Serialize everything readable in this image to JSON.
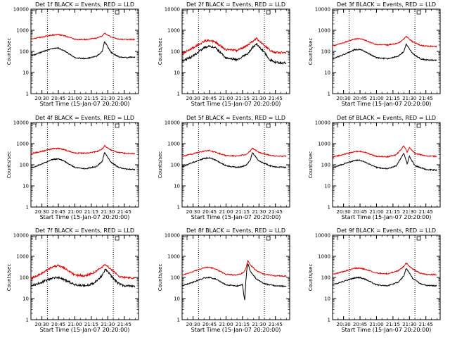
{
  "chart_data": [
    {
      "type": "line",
      "title": "Det 1f BLACK = Events, RED = LLD",
      "ylabel": "Counts/sec",
      "xlabel": "Start Time (15-Jan-07 20:20:00)",
      "x_ticks": [
        "20:30",
        "20:45",
        "21:00",
        "21:15",
        "21:30",
        "21:45"
      ],
      "yscale": "log",
      "ylim": [
        1,
        10000
      ],
      "y_ticks": [
        "1",
        "10",
        "100",
        "1000",
        "10000"
      ],
      "xlim": [
        "20:20",
        "21:58"
      ],
      "vlines": [
        "20:35",
        "21:35"
      ],
      "series": [
        {
          "name": "Events",
          "color": "#000000",
          "x": [
            "20:20",
            "20:30",
            "20:40",
            "20:45",
            "20:50",
            "21:00",
            "21:10",
            "21:20",
            "21:25",
            "21:27",
            "21:33",
            "21:40",
            "21:45",
            "21:55"
          ],
          "values": [
            60,
            95,
            140,
            145,
            110,
            50,
            45,
            60,
            100,
            300,
            90,
            55,
            50,
            55
          ]
        },
        {
          "name": "LLD",
          "color": "#e00000",
          "x": [
            "20:20",
            "20:30",
            "20:40",
            "20:45",
            "20:50",
            "21:00",
            "21:10",
            "21:20",
            "21:25",
            "21:27",
            "21:33",
            "21:40",
            "21:45",
            "21:55"
          ],
          "values": [
            380,
            480,
            600,
            620,
            560,
            370,
            370,
            420,
            550,
            750,
            480,
            380,
            370,
            370
          ]
        }
      ]
    },
    {
      "type": "line",
      "title": "Det 2f BLACK = Events, RED = LLD",
      "ylabel": "Counts/sec",
      "xlabel": "Start Time (15-Jan-07 20:20:00)",
      "x_ticks": [
        "20:30",
        "20:45",
        "21:00",
        "21:15",
        "21:30",
        "21:45"
      ],
      "yscale": "log",
      "ylim": [
        1,
        10000
      ],
      "y_ticks": [
        "1",
        "10",
        "100",
        "1000",
        "10000"
      ],
      "xlim": [
        "20:20",
        "21:58"
      ],
      "vlines": [
        "20:35",
        "21:35"
      ],
      "series": [
        {
          "name": "Events",
          "color": "#000000",
          "x": [
            "20:20",
            "20:30",
            "20:40",
            "20:45",
            "20:50",
            "21:00",
            "21:10",
            "21:20",
            "21:25",
            "21:28",
            "21:35",
            "21:40",
            "21:45",
            "21:55"
          ],
          "values": [
            35,
            60,
            150,
            180,
            150,
            50,
            40,
            80,
            170,
            220,
            90,
            40,
            30,
            28
          ]
        },
        {
          "name": "LLD",
          "color": "#e00000",
          "x": [
            "20:20",
            "20:30",
            "20:40",
            "20:45",
            "20:50",
            "21:00",
            "21:10",
            "21:20",
            "21:25",
            "21:28",
            "21:35",
            "21:40",
            "21:45",
            "21:55"
          ],
          "values": [
            80,
            150,
            300,
            330,
            280,
            120,
            110,
            200,
            330,
            400,
            200,
            110,
            90,
            85
          ]
        }
      ]
    },
    {
      "type": "line",
      "title": "Det 3f BLACK = Events, RED = LLD",
      "ylabel": "Counts/sec",
      "xlabel": "Start Time (15-Jan-07 20:20:00)",
      "x_ticks": [
        "20:30",
        "20:45",
        "21:00",
        "21:15",
        "21:30",
        "21:45"
      ],
      "yscale": "log",
      "ylim": [
        1,
        10000
      ],
      "y_ticks": [
        "1",
        "10",
        "100",
        "1000",
        "10000"
      ],
      "xlim": [
        "20:20",
        "21:58"
      ],
      "vlines": [
        "20:35",
        "21:35"
      ],
      "series": [
        {
          "name": "Events",
          "color": "#000000",
          "x": [
            "20:20",
            "20:30",
            "20:40",
            "20:45",
            "20:50",
            "21:00",
            "21:10",
            "21:20",
            "21:25",
            "21:27",
            "21:33",
            "21:40",
            "21:45",
            "21:55"
          ],
          "values": [
            45,
            70,
            120,
            125,
            95,
            50,
            45,
            60,
            100,
            220,
            80,
            45,
            40,
            38
          ]
        },
        {
          "name": "LLD",
          "color": "#e00000",
          "x": [
            "20:20",
            "20:30",
            "20:40",
            "20:45",
            "20:50",
            "21:00",
            "21:10",
            "21:20",
            "21:25",
            "21:27",
            "21:33",
            "21:40",
            "21:45",
            "21:55"
          ],
          "values": [
            180,
            260,
            380,
            400,
            330,
            210,
            200,
            250,
            380,
            520,
            280,
            200,
            180,
            170
          ]
        }
      ]
    },
    {
      "type": "line",
      "title": "Det 4f BLACK = Events, RED = LLD",
      "ylabel": "Counts/sec",
      "xlabel": "Start Time (15-Jan-07 20:20:00)",
      "x_ticks": [
        "20:30",
        "20:45",
        "21:00",
        "21:15",
        "21:30",
        "21:45"
      ],
      "yscale": "log",
      "ylim": [
        1,
        10000
      ],
      "y_ticks": [
        "1",
        "10",
        "100",
        "1000",
        "10000"
      ],
      "xlim": [
        "20:20",
        "21:58"
      ],
      "vlines": [
        "20:35",
        "21:35"
      ],
      "series": [
        {
          "name": "Events",
          "color": "#000000",
          "x": [
            "20:20",
            "20:30",
            "20:40",
            "20:45",
            "20:50",
            "21:00",
            "21:10",
            "21:20",
            "21:25",
            "21:27",
            "21:33",
            "21:40",
            "21:45",
            "21:55"
          ],
          "values": [
            70,
            110,
            180,
            190,
            150,
            75,
            65,
            85,
            150,
            380,
            130,
            75,
            65,
            60
          ]
        },
        {
          "name": "LLD",
          "color": "#e00000",
          "x": [
            "20:20",
            "20:30",
            "20:40",
            "20:45",
            "20:50",
            "21:00",
            "21:10",
            "21:20",
            "21:25",
            "21:27",
            "21:33",
            "21:40",
            "21:45",
            "21:55"
          ],
          "values": [
            340,
            430,
            580,
            600,
            520,
            360,
            350,
            420,
            560,
            800,
            500,
            380,
            350,
            340
          ]
        }
      ]
    },
    {
      "type": "line",
      "title": "Det 5f BLACK = Events, RED = LLD",
      "ylabel": "Counts/sec",
      "xlabel": "Start Time (15-Jan-07 20:20:00)",
      "x_ticks": [
        "20:30",
        "20:45",
        "21:00",
        "21:15",
        "21:30",
        "21:45"
      ],
      "yscale": "log",
      "ylim": [
        1,
        10000
      ],
      "y_ticks": [
        "1",
        "10",
        "100",
        "1000",
        "10000"
      ],
      "xlim": [
        "20:20",
        "21:58"
      ],
      "vlines": [
        "20:35",
        "21:35"
      ],
      "series": [
        {
          "name": "Events",
          "color": "#000000",
          "x": [
            "20:20",
            "20:30",
            "20:40",
            "20:45",
            "20:50",
            "21:00",
            "21:10",
            "21:18",
            "21:22",
            "21:24",
            "21:30",
            "21:40",
            "21:45",
            "21:55"
          ],
          "values": [
            80,
            130,
            200,
            210,
            170,
            90,
            75,
            90,
            160,
            380,
            150,
            90,
            80,
            75
          ]
        },
        {
          "name": "LLD",
          "color": "#e00000",
          "x": [
            "20:20",
            "20:30",
            "20:40",
            "20:45",
            "20:50",
            "21:00",
            "21:10",
            "21:18",
            "21:22",
            "21:24",
            "21:30",
            "21:40",
            "21:45",
            "21:55"
          ],
          "values": [
            250,
            330,
            450,
            470,
            400,
            270,
            260,
            300,
            430,
            620,
            380,
            280,
            260,
            250
          ]
        }
      ]
    },
    {
      "type": "line",
      "title": "Det 6f BLACK = Events, RED = LLD",
      "ylabel": "Counts/sec",
      "xlabel": "Start Time (15-Jan-07 20:20:00)",
      "x_ticks": [
        "20:30",
        "20:45",
        "21:00",
        "21:15",
        "21:30",
        "21:45"
      ],
      "yscale": "log",
      "ylim": [
        1,
        10000
      ],
      "y_ticks": [
        "1",
        "10",
        "100",
        "1000",
        "10000"
      ],
      "xlim": [
        "20:20",
        "21:58"
      ],
      "vlines": [
        "20:35",
        "21:35"
      ],
      "series": [
        {
          "name": "Events",
          "color": "#000000",
          "x": [
            "20:20",
            "20:30",
            "20:40",
            "20:45",
            "20:50",
            "21:00",
            "21:10",
            "21:18",
            "21:22",
            "21:25",
            "21:28",
            "21:30",
            "21:35",
            "21:45",
            "21:55"
          ],
          "values": [
            70,
            110,
            160,
            165,
            130,
            75,
            65,
            90,
            200,
            350,
            110,
            250,
            90,
            60,
            55
          ]
        },
        {
          "name": "LLD",
          "color": "#e00000",
          "x": [
            "20:20",
            "20:30",
            "20:40",
            "20:45",
            "20:50",
            "21:00",
            "21:10",
            "21:18",
            "21:22",
            "21:25",
            "21:28",
            "21:30",
            "21:35",
            "21:45",
            "21:55"
          ],
          "values": [
            230,
            310,
            420,
            430,
            380,
            250,
            240,
            300,
            500,
            800,
            400,
            650,
            350,
            260,
            250
          ]
        }
      ]
    },
    {
      "type": "line",
      "title": "Det 7f BLACK = Events, RED = LLD",
      "ylabel": "Counts/sec",
      "xlabel": "Start Time (15-Jan-07 20:20:00)",
      "x_ticks": [
        "20:30",
        "20:45",
        "21:00",
        "21:15",
        "21:30",
        "21:45"
      ],
      "yscale": "log",
      "ylim": [
        1,
        10000
      ],
      "y_ticks": [
        "1",
        "10",
        "100",
        "1000",
        "10000"
      ],
      "xlim": [
        "20:20",
        "21:58"
      ],
      "vlines": [
        "20:35",
        "21:35"
      ],
      "series": [
        {
          "name": "Events",
          "color": "#000000",
          "x": [
            "20:20",
            "20:30",
            "20:40",
            "20:45",
            "20:50",
            "21:00",
            "21:10",
            "21:18",
            "21:24",
            "21:28",
            "21:35",
            "21:40",
            "21:45",
            "21:55"
          ],
          "values": [
            40,
            60,
            95,
            100,
            80,
            45,
            40,
            55,
            110,
            250,
            90,
            50,
            40,
            38
          ]
        },
        {
          "name": "LLD",
          "color": "#e00000",
          "x": [
            "20:20",
            "20:30",
            "20:40",
            "20:45",
            "20:50",
            "21:00",
            "21:10",
            "21:18",
            "21:24",
            "21:28",
            "21:35",
            "21:40",
            "21:45",
            "21:55"
          ],
          "values": [
            90,
            160,
            330,
            360,
            300,
            130,
            120,
            180,
            300,
            420,
            200,
            110,
            100,
            95
          ]
        }
      ]
    },
    {
      "type": "line",
      "title": "Det 8f BLACK = Events, RED = LLD",
      "ylabel": "Counts/sec",
      "xlabel": "Start Time (15-Jan-07 20:20:00)",
      "x_ticks": [
        "20:30",
        "20:45",
        "21:00",
        "21:15",
        "21:30",
        "21:45"
      ],
      "yscale": "log",
      "ylim": [
        1,
        10000
      ],
      "y_ticks": [
        "1",
        "10",
        "100",
        "1000",
        "10000"
      ],
      "xlim": [
        "20:20",
        "21:58"
      ],
      "vlines": [
        "20:35",
        "21:35"
      ],
      "series": [
        {
          "name": "Events",
          "color": "#000000",
          "x": [
            "20:20",
            "20:30",
            "20:40",
            "20:45",
            "20:50",
            "21:00",
            "21:10",
            "21:15",
            "21:17",
            "21:18",
            "21:19",
            "21:20",
            "21:22",
            "21:28",
            "21:35",
            "21:45",
            "21:55"
          ],
          "values": [
            40,
            60,
            95,
            100,
            85,
            45,
            40,
            45,
            8,
            60,
            250,
            480,
            200,
            80,
            50,
            40,
            38
          ]
        },
        {
          "name": "LLD",
          "color": "#e00000",
          "x": [
            "20:20",
            "20:30",
            "20:40",
            "20:45",
            "20:50",
            "21:00",
            "21:10",
            "21:15",
            "21:17",
            "21:18",
            "21:19",
            "21:20",
            "21:22",
            "21:28",
            "21:35",
            "21:45",
            "21:55"
          ],
          "values": [
            130,
            190,
            290,
            300,
            260,
            140,
            130,
            160,
            200,
            260,
            420,
            640,
            400,
            200,
            140,
            120,
            115
          ]
        }
      ]
    },
    {
      "type": "line",
      "title": "Det 9f BLACK = Events, RED = LLD",
      "ylabel": "Counts/sec",
      "xlabel": "Start Time (15-Jan-07 20:20:00)",
      "x_ticks": [
        "20:30",
        "20:45",
        "21:00",
        "21:15",
        "21:30",
        "21:45"
      ],
      "yscale": "log",
      "ylim": [
        1,
        10000
      ],
      "y_ticks": [
        "1",
        "10",
        "100",
        "1000",
        "10000"
      ],
      "xlim": [
        "20:20",
        "21:58"
      ],
      "vlines": [
        "20:35",
        "21:35"
      ],
      "series": [
        {
          "name": "Events",
          "color": "#000000",
          "x": [
            "20:20",
            "20:30",
            "20:40",
            "20:45",
            "20:50",
            "21:00",
            "21:10",
            "21:20",
            "21:25",
            "21:27",
            "21:33",
            "21:40",
            "21:45",
            "21:55"
          ],
          "values": [
            45,
            65,
            95,
            100,
            80,
            45,
            40,
            60,
            120,
            280,
            90,
            50,
            42,
            40
          ]
        },
        {
          "name": "LLD",
          "color": "#e00000",
          "x": [
            "20:20",
            "20:30",
            "20:40",
            "20:45",
            "20:50",
            "21:00",
            "21:10",
            "21:20",
            "21:25",
            "21:27",
            "21:33",
            "21:40",
            "21:45",
            "21:55"
          ],
          "values": [
            140,
            190,
            270,
            280,
            240,
            160,
            150,
            210,
            330,
            480,
            250,
            160,
            140,
            135
          ]
        }
      ]
    }
  ]
}
